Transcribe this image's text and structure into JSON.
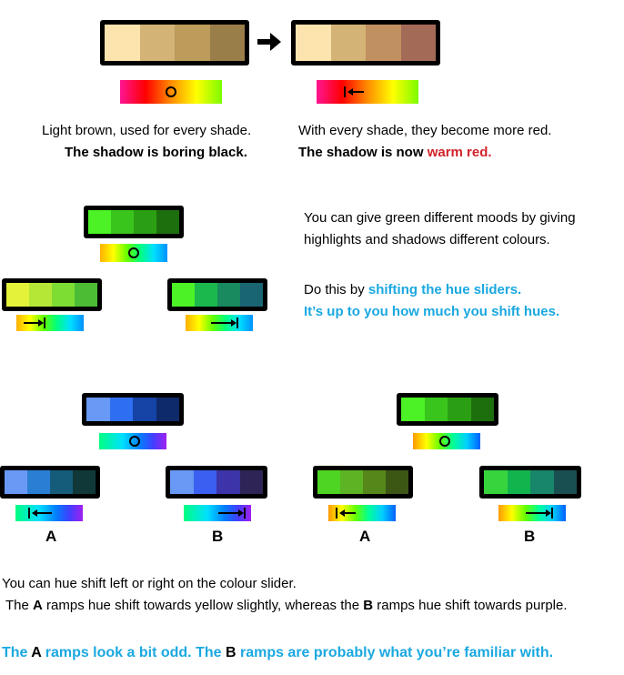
{
  "section1": {
    "left_ramp": [
      "#fde3ae",
      "#d3b376",
      "#bd9b5a",
      "#9a7e4a"
    ],
    "right_ramp": [
      "#fde3ae",
      "#d3b376",
      "#c19060",
      "#a46a58"
    ],
    "left_caption_1": "Light brown, used for  every shade.",
    "left_caption_2": "The shadow is boring black.",
    "right_caption_1": "With every shade, they become more red.",
    "right_caption_2_prefix": "The shadow is now ",
    "right_caption_2_highlight": "warm red."
  },
  "section2": {
    "top_ramp": [
      "#4cf225",
      "#3ac51c",
      "#2b9f14",
      "#1d6f0d"
    ],
    "left_ramp": [
      "#e4f23a",
      "#b5e836",
      "#7ddd33",
      "#4cbc34"
    ],
    "right_ramp": [
      "#4cf225",
      "#1bb84e",
      "#198a60",
      "#1a6573"
    ],
    "desc_1": "You can give green different moods by giving",
    "desc_2": "highlights and shadows different colours.",
    "do_prefix": "Do this by ",
    "do_highlight": "shifting the hue sliders.",
    "up_to_you": "It’s up to you how much you shift hues."
  },
  "section3": {
    "blue_top": [
      "#6899f4",
      "#2e6ef0",
      "#1643a6",
      "#0f2a6a"
    ],
    "blue_a": [
      "#6899f4",
      "#2a7fd4",
      "#145c7a",
      "#103838"
    ],
    "blue_b": [
      "#6899f4",
      "#3b5ff0",
      "#3c34a8",
      "#2e2556"
    ],
    "green_top": [
      "#4cf225",
      "#3ac51c",
      "#2b9f14",
      "#1d6f0d"
    ],
    "green_a": [
      "#4ed423",
      "#5cb323",
      "#56871a",
      "#3c5614"
    ],
    "green_b": [
      "#38d43e",
      "#12b44d",
      "#18866a",
      "#1a4f52"
    ],
    "label_a": "A",
    "label_b": "B"
  },
  "footer": {
    "line1": "You can hue shift left or right on the colour  slider.",
    "line2_prefix": "The ",
    "line2_a": "A",
    "line2_mid": " ramps hue shift towards yellow slightly, whereas the ",
    "line2_b": "B",
    "line2_suffix": " ramps hue shift towards purple.",
    "line3_prefix": "The ",
    "line3_a": "A",
    "line3_mid": " ramps look a bit odd. The ",
    "line3_b": "B",
    "line3_suffix": " ramps are probably what you’re familiar with."
  }
}
